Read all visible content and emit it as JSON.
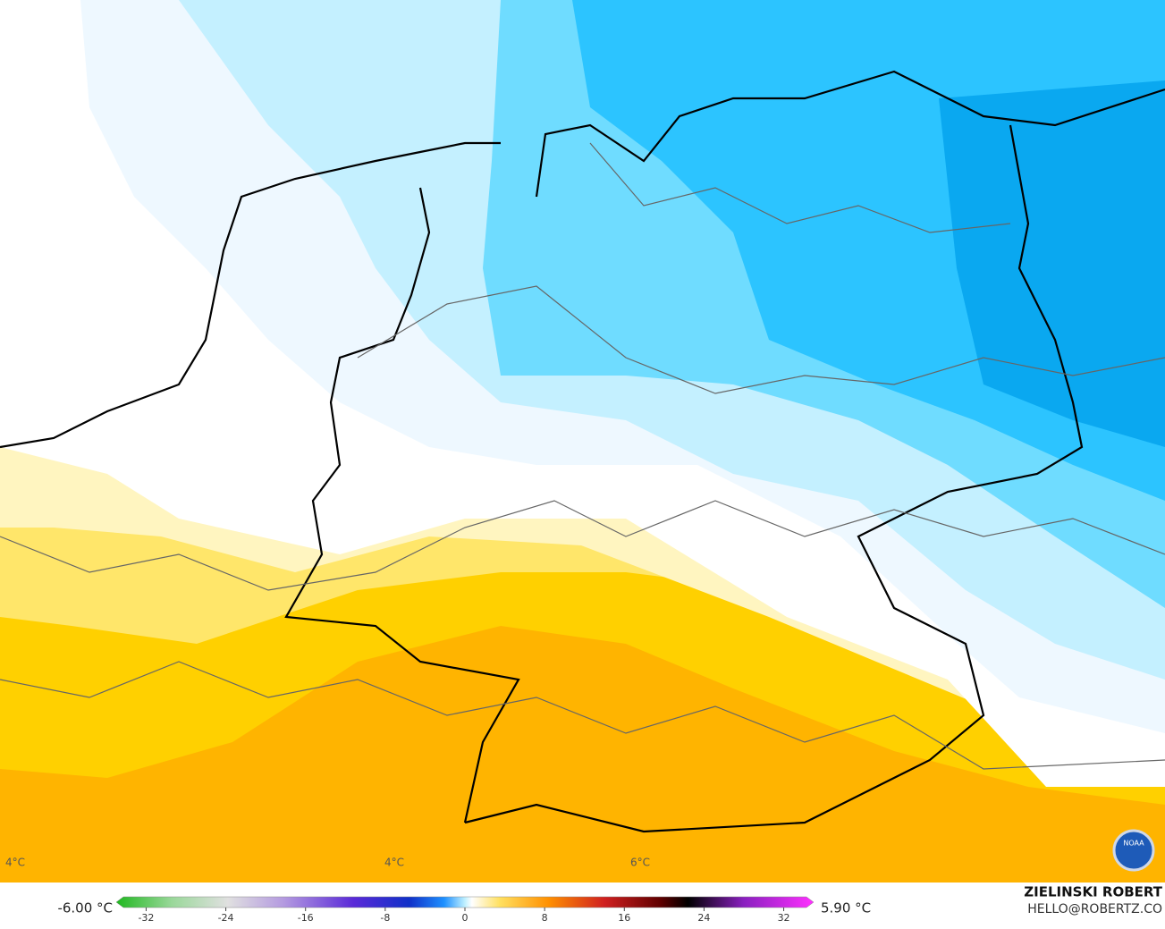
{
  "map": {
    "contour_labels": [
      "4°C",
      "4°C",
      "6°C"
    ]
  },
  "legend": {
    "min_label": "-6.00 °C",
    "max_label": "5.90 °C",
    "ticks": [
      -32,
      -24,
      -16,
      -8,
      0,
      8,
      16,
      24,
      32
    ],
    "range": [
      -35,
      35
    ]
  },
  "credits": {
    "author": "ZIELINSKI ROBERT",
    "contact": "HELLO@ROBERTZ.CO",
    "logo": "NOAA"
  }
}
